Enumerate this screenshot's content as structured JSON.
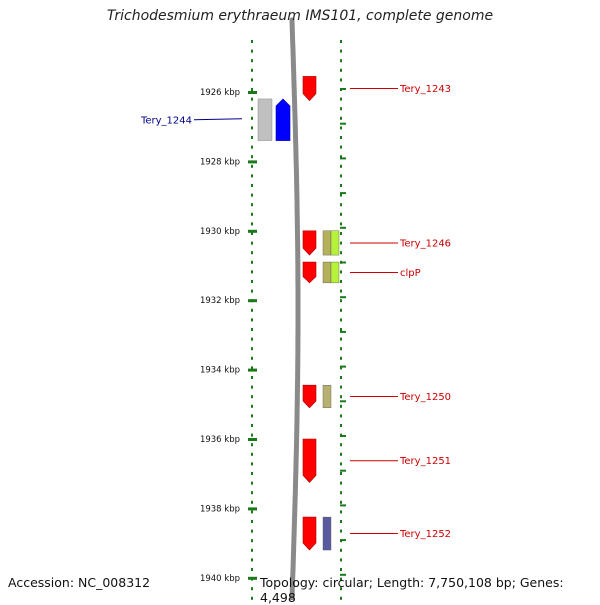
{
  "title": "Trichodesmium erythraeum IMS101, complete genome",
  "accession": "Accession: NC_008312",
  "summary": "Topology: circular; Length: 7,750,108 bp; Genes: 4,498",
  "scale": {
    "unit": "kbp",
    "range_kbp": [
      1924.6,
      1940
    ],
    "ticks": [
      {
        "kbp": 1926,
        "label": "1926 kbp"
      },
      {
        "kbp": 1928,
        "label": "1928 kbp"
      },
      {
        "kbp": 1930,
        "label": "1930 kbp"
      },
      {
        "kbp": 1932,
        "label": "1932 kbp"
      },
      {
        "kbp": 1934,
        "label": "1934 kbp"
      },
      {
        "kbp": 1936,
        "label": "1936 kbp"
      },
      {
        "kbp": 1938,
        "label": "1938 kbp"
      },
      {
        "kbp": 1940,
        "label": "1940 kbp"
      }
    ]
  },
  "colors": {
    "forward_gene": "#ff0000",
    "reverse_gene": "#0000ff",
    "reverse_label": "#00008b",
    "forward_label": "#cc0000",
    "backbone": "#8a8a8a",
    "dots": "#1a7a1a"
  },
  "genes": [
    {
      "name": "Tery_1243",
      "strand": "+",
      "start_kbp": 1925.55,
      "end_kbp": 1926.25,
      "cog": []
    },
    {
      "name": "Tery_1244",
      "strand": "-",
      "start_kbp": 1926.2,
      "end_kbp": 1927.4,
      "cog": [
        "#c0c0c0"
      ]
    },
    {
      "name": "Tery_1246",
      "strand": "+",
      "start_kbp": 1930.0,
      "end_kbp": 1930.7,
      "cog": [
        "#b5b05a",
        "#b6f23a"
      ]
    },
    {
      "name": "clpP",
      "strand": "+",
      "start_kbp": 1930.9,
      "end_kbp": 1931.5,
      "cog": [
        "#b5b05a",
        "#b6f23a"
      ]
    },
    {
      "name": "Tery_1250",
      "strand": "+",
      "start_kbp": 1934.45,
      "end_kbp": 1935.1,
      "cog": [
        "#b8b070"
      ]
    },
    {
      "name": "Tery_1251",
      "strand": "+",
      "start_kbp": 1936.0,
      "end_kbp": 1937.25,
      "cog": []
    },
    {
      "name": "Tery_1252",
      "strand": "+",
      "start_kbp": 1938.25,
      "end_kbp": 1939.2,
      "cog": [
        "#5a5aa0"
      ]
    }
  ]
}
